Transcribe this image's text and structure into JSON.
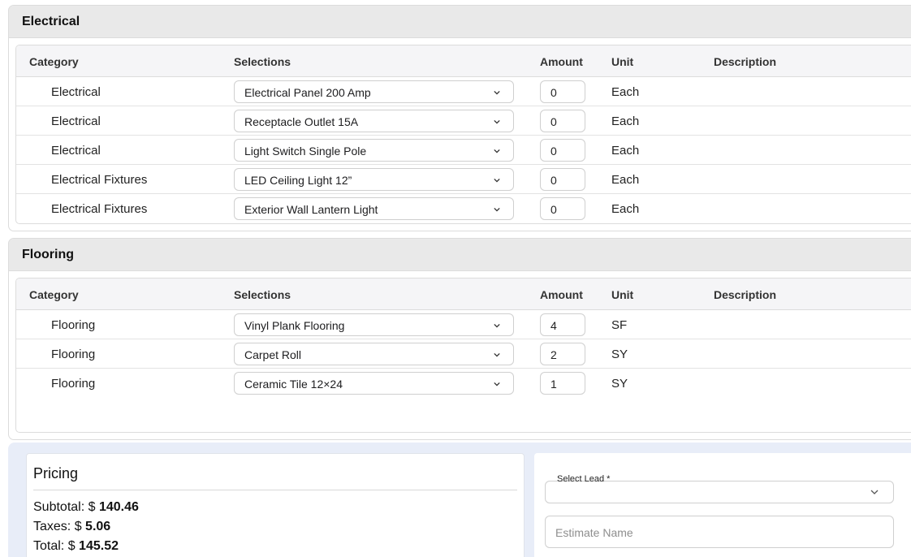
{
  "electrical": {
    "title": "Electrical",
    "headers": {
      "category": "Category",
      "selections": "Selections",
      "amount": "Amount",
      "unit": "Unit",
      "description": "Description"
    },
    "rows": [
      {
        "category": "Electrical",
        "selection": "Electrical Panel 200 Amp",
        "amount": "0",
        "unit": "Each"
      },
      {
        "category": "Electrical",
        "selection": "Receptacle Outlet 15A",
        "amount": "0",
        "unit": "Each"
      },
      {
        "category": "Electrical",
        "selection": "Light Switch Single Pole",
        "amount": "0",
        "unit": "Each"
      },
      {
        "category": "Electrical Fixtures",
        "selection": "LED Ceiling Light 12”",
        "amount": "0",
        "unit": "Each"
      },
      {
        "category": "Electrical Fixtures",
        "selection": "Exterior Wall Lantern Light",
        "amount": "0",
        "unit": "Each"
      }
    ]
  },
  "flooring": {
    "title": "Flooring",
    "headers": {
      "category": "Category",
      "selections": "Selections",
      "amount": "Amount",
      "unit": "Unit",
      "description": "Description"
    },
    "rows": [
      {
        "category": "Flooring",
        "selection": "Vinyl Plank Flooring",
        "amount": "4",
        "unit": "SF"
      },
      {
        "category": "Flooring",
        "selection": "Carpet Roll",
        "amount": "2",
        "unit": "SY"
      },
      {
        "category": "Flooring",
        "selection": "Ceramic Tile 12×24",
        "amount": "1",
        "unit": "SY"
      }
    ]
  },
  "pricing": {
    "title": "Pricing",
    "subtotal_label": "Subtotal: $",
    "subtotal_value": "140.46",
    "taxes_label": "Taxes: $",
    "taxes_value": "5.06",
    "total_label": "Total: $",
    "total_value": "145.52"
  },
  "form": {
    "lead_label": "Select Lead *",
    "lead_value": "",
    "estimate_name_placeholder": "Estimate Name"
  },
  "icons": {
    "dropdown": "chevron-down-icon"
  },
  "colors": {
    "header_bg": "#e9e9e9",
    "pricing_bg": "#e8edf8",
    "border": "#dcdcdc"
  }
}
